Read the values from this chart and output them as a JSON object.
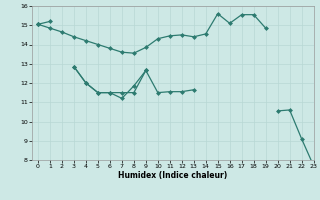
{
  "xlabel": "Humidex (Indice chaleur)",
  "x": [
    0,
    1,
    2,
    3,
    4,
    5,
    6,
    7,
    8,
    9,
    10,
    11,
    12,
    13,
    14,
    15,
    16,
    17,
    18,
    19,
    20,
    21,
    22,
    23
  ],
  "line1": [
    15.05,
    15.2,
    null,
    null,
    null,
    null,
    null,
    null,
    null,
    null,
    null,
    null,
    null,
    null,
    null,
    null,
    null,
    null,
    null,
    null,
    null,
    null,
    null,
    null
  ],
  "line2": [
    15.05,
    14.85,
    14.65,
    14.4,
    14.2,
    14.0,
    13.8,
    13.6,
    13.55,
    13.85,
    14.3,
    14.45,
    14.5,
    14.4,
    14.55,
    15.6,
    15.1,
    15.55,
    15.55,
    14.85,
    null,
    null,
    null,
    null
  ],
  "line3": [
    null,
    null,
    null,
    12.85,
    12.0,
    11.5,
    11.5,
    11.5,
    11.5,
    12.65,
    null,
    null,
    null,
    null,
    null,
    null,
    null,
    null,
    null,
    null,
    null,
    null,
    null,
    null
  ],
  "line4": [
    null,
    null,
    null,
    12.85,
    12.0,
    11.5,
    11.5,
    11.2,
    11.85,
    12.65,
    11.5,
    11.55,
    11.55,
    11.65,
    null,
    null,
    null,
    null,
    null,
    null,
    null,
    null,
    null,
    null
  ],
  "line5": [
    15.05,
    null,
    null,
    null,
    null,
    null,
    null,
    null,
    null,
    null,
    null,
    null,
    null,
    null,
    null,
    null,
    null,
    null,
    null,
    null,
    10.55,
    10.6,
    9.1,
    7.7
  ],
  "ylim": [
    8,
    16
  ],
  "xlim": [
    -0.5,
    23
  ],
  "yticks": [
    8,
    9,
    10,
    11,
    12,
    13,
    14,
    15,
    16
  ],
  "xticks": [
    0,
    1,
    2,
    3,
    4,
    5,
    6,
    7,
    8,
    9,
    10,
    11,
    12,
    13,
    14,
    15,
    16,
    17,
    18,
    19,
    20,
    21,
    22,
    23
  ],
  "bg_color": "#cde8e5",
  "grid_color": "#b8d8d4",
  "line_color": "#2d7b70",
  "markersize": 2.5,
  "linewidth": 0.9
}
